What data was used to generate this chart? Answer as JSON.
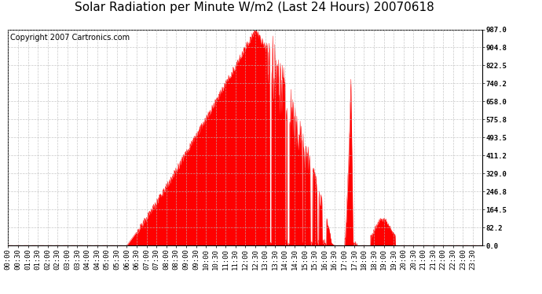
{
  "title": "Solar Radiation per Minute W/m2 (Last 24 Hours) 20070618",
  "copyright_text": "Copyright 2007 Cartronics.com",
  "bg_color": "#ffffff",
  "plot_bg_color": "#ffffff",
  "line_color": "#ff0000",
  "fill_color": "#ff0000",
  "grid_color": "#bbbbbb",
  "dashed_line_color": "#ff0000",
  "ytick_labels": [
    "0.0",
    "82.2",
    "164.5",
    "246.8",
    "329.0",
    "411.2",
    "493.5",
    "575.8",
    "658.0",
    "740.2",
    "822.5",
    "904.8",
    "987.0"
  ],
  "ytick_values": [
    0.0,
    82.2,
    164.5,
    246.8,
    329.0,
    411.2,
    493.5,
    575.8,
    658.0,
    740.2,
    822.5,
    904.8,
    987.0
  ],
  "ymax": 987.0,
  "num_minutes": 1440,
  "title_fontsize": 11,
  "copyright_fontsize": 7,
  "tick_label_fontsize": 6.5,
  "xtick_step": 30
}
